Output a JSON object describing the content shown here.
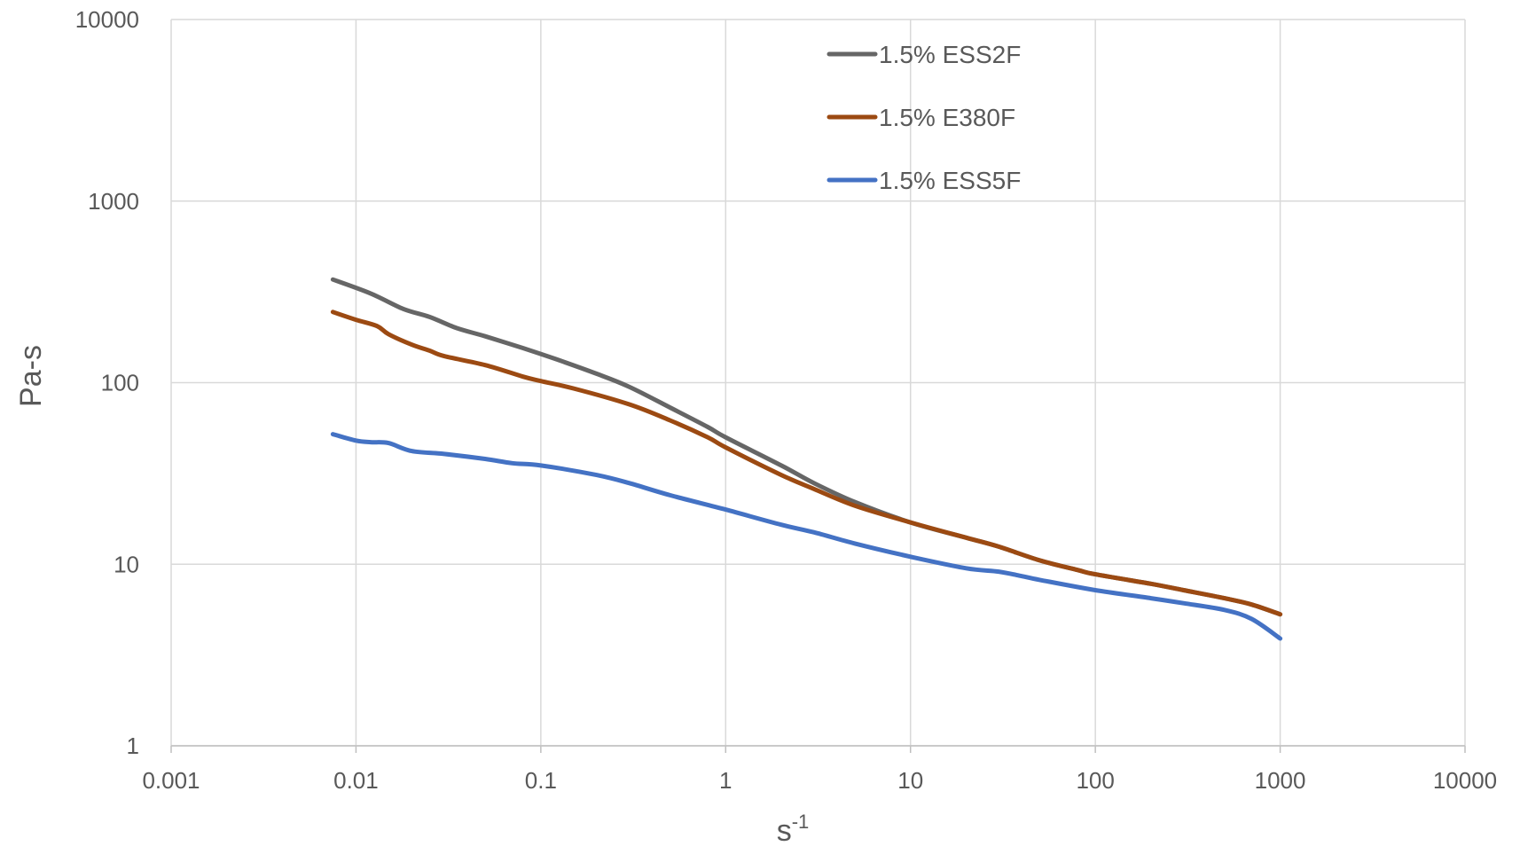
{
  "chart_data": {
    "type": "line",
    "title": "",
    "xlabel": "s",
    "xlabel_superscript": "-1",
    "ylabel": "Pa-s",
    "x_scale": "log",
    "y_scale": "log",
    "xlim": [
      0.001,
      10000
    ],
    "ylim": [
      1,
      10000
    ],
    "x_ticks": [
      0.001,
      0.01,
      0.1,
      1,
      10,
      100,
      1000,
      10000
    ],
    "x_tick_labels": [
      "0.001",
      "0.01",
      "0.1",
      "1",
      "10",
      "100",
      "1000",
      "10000"
    ],
    "y_ticks": [
      1,
      10,
      100,
      1000,
      10000
    ],
    "y_tick_labels": [
      "1",
      "10",
      "100",
      "1000",
      "10000"
    ],
    "grid": true,
    "legend_position": "top-center",
    "series": [
      {
        "name": "1.5% ESS2F",
        "color": "#666666",
        "points": [
          [
            0.0075,
            370
          ],
          [
            0.012,
            310
          ],
          [
            0.018,
            255
          ],
          [
            0.025,
            230
          ],
          [
            0.035,
            200
          ],
          [
            0.05,
            180
          ],
          [
            0.08,
            155
          ],
          [
            0.12,
            135
          ],
          [
            0.2,
            112
          ],
          [
            0.3,
            95
          ],
          [
            0.5,
            73
          ],
          [
            0.8,
            57
          ],
          [
            1,
            50
          ],
          [
            2,
            35
          ],
          [
            3,
            28
          ],
          [
            5,
            22
          ],
          [
            10,
            17
          ],
          [
            20,
            14
          ],
          [
            30,
            12.5
          ],
          [
            50,
            10.5
          ],
          [
            80,
            9.3
          ],
          [
            100,
            8.8
          ],
          [
            200,
            7.8
          ],
          [
            300,
            7.2
          ],
          [
            500,
            6.5
          ],
          [
            700,
            6.0
          ],
          [
            1000,
            5.3
          ]
        ]
      },
      {
        "name": "1.5% E380F",
        "color": "#9C4A12",
        "points": [
          [
            0.0075,
            245
          ],
          [
            0.01,
            222
          ],
          [
            0.013,
            205
          ],
          [
            0.015,
            185
          ],
          [
            0.02,
            162
          ],
          [
            0.025,
            150
          ],
          [
            0.03,
            140
          ],
          [
            0.05,
            125
          ],
          [
            0.08,
            108
          ],
          [
            0.1,
            102
          ],
          [
            0.15,
            93
          ],
          [
            0.3,
            76
          ],
          [
            0.5,
            62
          ],
          [
            0.8,
            50
          ],
          [
            1,
            44
          ],
          [
            2,
            31
          ],
          [
            3,
            26
          ],
          [
            5,
            21
          ],
          [
            10,
            17
          ],
          [
            20,
            14
          ],
          [
            30,
            12.5
          ],
          [
            50,
            10.5
          ],
          [
            80,
            9.3
          ],
          [
            100,
            8.8
          ],
          [
            200,
            7.8
          ],
          [
            300,
            7.2
          ],
          [
            500,
            6.5
          ],
          [
            700,
            6.0
          ],
          [
            1000,
            5.3
          ]
        ]
      },
      {
        "name": "1.5% ESS5F",
        "color": "#4472C4",
        "points": [
          [
            0.0075,
            52
          ],
          [
            0.01,
            48
          ],
          [
            0.012,
            47
          ],
          [
            0.015,
            46.5
          ],
          [
            0.02,
            42
          ],
          [
            0.03,
            40.5
          ],
          [
            0.05,
            38
          ],
          [
            0.07,
            36
          ],
          [
            0.1,
            35
          ],
          [
            0.2,
            31
          ],
          [
            0.3,
            28
          ],
          [
            0.5,
            24
          ],
          [
            1,
            20
          ],
          [
            2,
            16.5
          ],
          [
            3,
            15
          ],
          [
            5,
            13
          ],
          [
            10,
            11
          ],
          [
            20,
            9.5
          ],
          [
            30,
            9.1
          ],
          [
            40,
            8.6
          ],
          [
            50,
            8.2
          ],
          [
            100,
            7.2
          ],
          [
            200,
            6.5
          ],
          [
            300,
            6.1
          ],
          [
            500,
            5.6
          ],
          [
            700,
            5.0
          ],
          [
            1000,
            3.9
          ]
        ]
      }
    ]
  }
}
